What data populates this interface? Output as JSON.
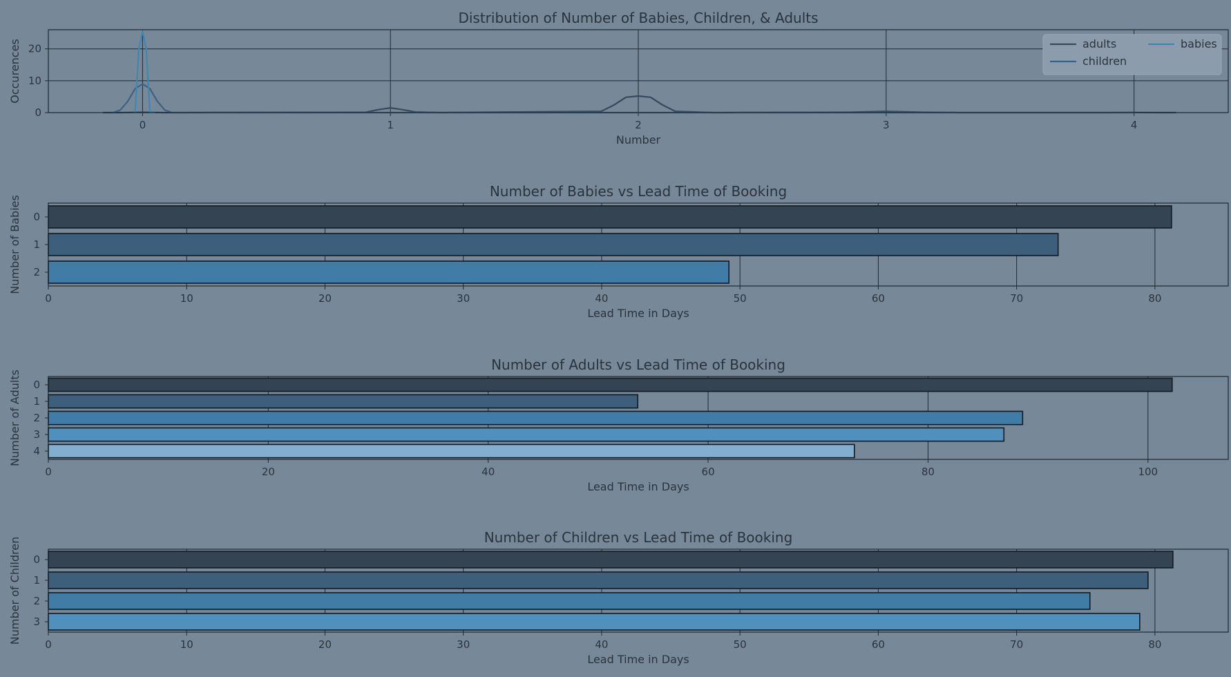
{
  "chart_data": [
    {
      "type": "line",
      "title": "Distribution of Number of Babies, Children, & Adults",
      "xlabel": "Number",
      "ylabel": "Occurences",
      "xlim": [
        -0.38,
        4.38
      ],
      "ylim": [
        0,
        26
      ],
      "xticks": [
        0,
        1,
        2,
        3,
        4
      ],
      "yticks": [
        0,
        10,
        20
      ],
      "grid": true,
      "legend": "top-right",
      "legend_columns": 2,
      "series": [
        {
          "name": "adults",
          "color": "#34495e",
          "x": [
            -0.16,
            -0.08,
            0,
            0.08,
            0.15,
            0.9,
            0.95,
            1.0,
            1.05,
            1.1,
            1.2,
            1.85,
            1.9,
            1.95,
            2.0,
            2.05,
            2.1,
            2.15,
            2.3,
            2.85,
            3.0,
            3.15,
            3.3,
            3.9,
            4.0,
            4.1,
            4.17
          ],
          "y": [
            0,
            0,
            0.1,
            0,
            0,
            0.1,
            0.9,
            1.5,
            0.9,
            0.2,
            0,
            0.4,
            2.3,
            4.8,
            5.2,
            4.8,
            2.3,
            0.4,
            0,
            0.1,
            0.4,
            0.1,
            0,
            0,
            0.05,
            0,
            0
          ]
        },
        {
          "name": "children",
          "color": "#3d6182",
          "x": [
            -0.12,
            -0.09,
            -0.06,
            -0.03,
            0,
            0.03,
            0.06,
            0.09,
            0.12,
            0.2,
            1.0,
            2.0,
            3.0,
            4.0
          ],
          "y": [
            0,
            0.8,
            3.5,
            7.5,
            9,
            7.5,
            3.5,
            0.8,
            0,
            0,
            0,
            0,
            0,
            0
          ]
        },
        {
          "name": "babies",
          "color": "#3f86b5",
          "x": [
            -0.03,
            -0.015,
            0,
            0.015,
            0.03,
            0.05
          ],
          "y": [
            0,
            20,
            25.5,
            20,
            0,
            0
          ]
        }
      ]
    },
    {
      "type": "bar",
      "orientation": "horizontal",
      "title": "Number of Babies vs Lead Time of Booking",
      "xlabel": "Lead Time in Days",
      "ylabel": "Number of Babies",
      "categories": [
        "0",
        "1",
        "2"
      ],
      "values": [
        81.2,
        73.0,
        49.2
      ],
      "colors": [
        "#354452",
        "#3e5f7b",
        "#407ca6"
      ],
      "xlim": [
        0,
        85.3
      ],
      "xticks": [
        0,
        10,
        20,
        30,
        40,
        50,
        60,
        70,
        80
      ],
      "grid": true
    },
    {
      "type": "bar",
      "orientation": "horizontal",
      "title": "Number of Adults vs Lead Time of Booking",
      "xlabel": "Lead Time in Days",
      "ylabel": "Number of Adults",
      "categories": [
        "0",
        "1",
        "2",
        "3",
        "4"
      ],
      "values": [
        102.2,
        53.6,
        88.6,
        86.9,
        73.3
      ],
      "colors": [
        "#354452",
        "#3e5f7b",
        "#407ca6",
        "#5090bd",
        "#82aed0"
      ],
      "xlim": [
        0,
        107.3
      ],
      "xticks": [
        0,
        20,
        40,
        60,
        80,
        100
      ],
      "grid": true
    },
    {
      "type": "bar",
      "orientation": "horizontal",
      "title": "Number of Children vs Lead Time of Booking",
      "xlabel": "Lead Time in Days",
      "ylabel": "Number of Children",
      "categories": [
        "0",
        "1",
        "2",
        "3"
      ],
      "values": [
        81.3,
        79.5,
        75.3,
        78.9
      ],
      "colors": [
        "#354452",
        "#3e5f7b",
        "#407ca6",
        "#5090bd"
      ],
      "xlim": [
        0,
        85.3
      ],
      "xticks": [
        0,
        10,
        20,
        30,
        40,
        50,
        60,
        70,
        80
      ],
      "grid": true
    }
  ]
}
